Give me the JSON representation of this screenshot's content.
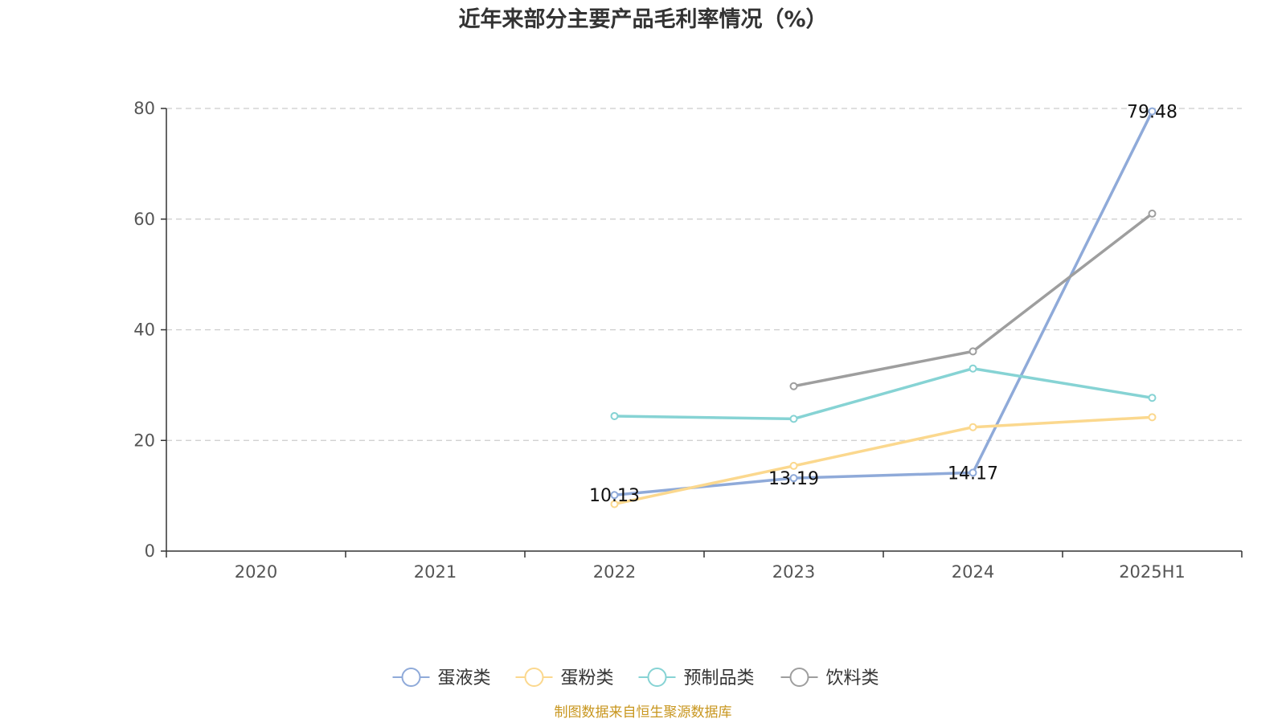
{
  "chart_data": {
    "type": "line",
    "title": "近年来部分主要产品毛利率情况（%）",
    "categories": [
      "2020",
      "2021",
      "2022",
      "2023",
      "2024",
      "2025H1"
    ],
    "ylim": [
      0,
      80
    ],
    "yticks": [
      "0",
      "20",
      "40",
      "60",
      "80"
    ],
    "grid": "horizontal dashed",
    "legend": "bottom-center",
    "series": [
      {
        "name": "蛋液类",
        "color": "#8faad9",
        "values": [
          null,
          null,
          10.13,
          13.19,
          14.17,
          79.48
        ],
        "labels": [
          null,
          null,
          "10.13",
          "13.19",
          "14.17",
          "79.48"
        ]
      },
      {
        "name": "蛋粉类",
        "color": "#fbd88e",
        "values": [
          null,
          null,
          8.5,
          15.4,
          22.4,
          24.2
        ]
      },
      {
        "name": "预制品类",
        "color": "#86d3d4",
        "values": [
          null,
          null,
          24.4,
          23.9,
          33.0,
          27.7
        ]
      },
      {
        "name": "饮料类",
        "color": "#9e9e9e",
        "values": [
          null,
          null,
          null,
          29.8,
          36.1,
          61.0
        ]
      }
    ]
  },
  "footer": {
    "source": "制图数据来自恒生聚源数据库"
  }
}
